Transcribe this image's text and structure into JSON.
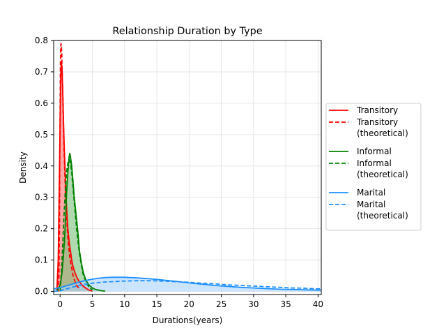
{
  "chart_data": {
    "type": "line",
    "title": "Relationship Duration by Type",
    "xlabel": "Durations(years)",
    "ylabel": "Density",
    "xlim": [
      -1,
      40.5
    ],
    "ylim": [
      -0.01,
      0.8
    ],
    "xticks": [
      0,
      5,
      10,
      15,
      20,
      25,
      30,
      35,
      40
    ],
    "yticks": [
      0.0,
      0.1,
      0.2,
      0.3,
      0.4,
      0.5,
      0.6,
      0.7,
      0.8
    ],
    "xtick_labels": [
      "0",
      "5",
      "10",
      "15",
      "20",
      "25",
      "30",
      "35",
      "40"
    ],
    "ytick_labels": [
      "0.0",
      "0.1",
      "0.2",
      "0.3",
      "0.4",
      "0.5",
      "0.6",
      "0.7",
      "0.8"
    ],
    "grid": true,
    "legend_position": "outside-right",
    "series": [
      {
        "name": "Transitory",
        "style": "solid",
        "color": "#ff0000",
        "fill": "#ff6f6f",
        "x": [
          -0.5,
          -0.3,
          -0.1,
          0.0,
          0.1,
          0.2,
          0.3,
          0.4,
          0.5,
          0.6,
          0.7,
          0.8,
          0.9,
          1.0,
          1.2,
          1.4,
          1.6,
          1.8,
          2.0,
          2.3,
          2.6,
          3.0,
          3.5,
          4.0,
          4.5,
          5.0
        ],
        "y": [
          0.0,
          0.1,
          0.38,
          0.55,
          0.68,
          0.73,
          0.71,
          0.64,
          0.56,
          0.49,
          0.43,
          0.37,
          0.32,
          0.27,
          0.2,
          0.16,
          0.13,
          0.1,
          0.08,
          0.06,
          0.045,
          0.03,
          0.018,
          0.01,
          0.004,
          0.001
        ]
      },
      {
        "name": "Transitory\n(theoretical)",
        "style": "dashed",
        "color": "#ff0000",
        "x": [
          -0.3,
          -0.2,
          -0.1,
          0.0,
          0.05,
          0.1,
          0.15,
          0.2,
          0.25,
          0.3,
          0.4,
          0.5,
          0.6,
          0.8,
          1.0,
          1.2,
          1.5,
          2.0,
          2.5,
          3.0
        ],
        "y": [
          0.0,
          0.03,
          0.2,
          0.6,
          0.73,
          0.78,
          0.79,
          0.78,
          0.76,
          0.72,
          0.64,
          0.55,
          0.46,
          0.33,
          0.24,
          0.17,
          0.11,
          0.05,
          0.02,
          0.008
        ]
      },
      {
        "name": "Informal",
        "style": "solid",
        "color": "#008000",
        "fill": "#79c279",
        "x": [
          -0.5,
          0.0,
          0.3,
          0.5,
          0.7,
          0.9,
          1.0,
          1.2,
          1.4,
          1.5,
          1.6,
          1.8,
          2.0,
          2.2,
          2.5,
          2.8,
          3.0,
          3.3,
          3.6,
          4.0,
          4.5,
          5.0,
          5.5,
          6.0,
          6.5,
          7.0
        ],
        "y": [
          0.0,
          0.02,
          0.06,
          0.11,
          0.17,
          0.26,
          0.31,
          0.38,
          0.43,
          0.44,
          0.43,
          0.4,
          0.35,
          0.3,
          0.24,
          0.18,
          0.13,
          0.09,
          0.06,
          0.035,
          0.02,
          0.011,
          0.006,
          0.004,
          0.002,
          0.001
        ]
      },
      {
        "name": "Informal\n(theoretical)",
        "style": "dashed",
        "color": "#008000",
        "x": [
          0.0,
          0.2,
          0.4,
          0.6,
          0.8,
          1.0,
          1.2,
          1.4,
          1.6,
          1.8,
          2.0,
          2.3,
          2.6,
          3.0,
          3.5,
          4.0,
          4.5,
          5.0
        ],
        "y": [
          0.0,
          0.06,
          0.15,
          0.24,
          0.32,
          0.38,
          0.41,
          0.42,
          0.41,
          0.38,
          0.33,
          0.26,
          0.19,
          0.12,
          0.06,
          0.03,
          0.013,
          0.005
        ]
      },
      {
        "name": "Marital",
        "style": "solid",
        "color": "#1e90ff",
        "fill": "#aad4ff",
        "x": [
          -1.0,
          0.0,
          1.0,
          2.0,
          3.0,
          4.0,
          5.0,
          6.0,
          7.0,
          8.0,
          9.0,
          10.0,
          12.0,
          14.0,
          16.0,
          18.0,
          20.0,
          22.0,
          24.0,
          26.0,
          28.0,
          30.0,
          32.0,
          34.0,
          36.0,
          38.0,
          40.0,
          40.5
        ],
        "y": [
          0.008,
          0.012,
          0.018,
          0.024,
          0.03,
          0.035,
          0.039,
          0.042,
          0.044,
          0.045,
          0.045,
          0.045,
          0.043,
          0.04,
          0.036,
          0.032,
          0.027,
          0.023,
          0.019,
          0.016,
          0.013,
          0.011,
          0.009,
          0.007,
          0.006,
          0.005,
          0.004,
          0.004
        ]
      },
      {
        "name": "Marital\n(theoretical)",
        "style": "dashed",
        "color": "#1e90ff",
        "x": [
          -1.0,
          0.0,
          1.0,
          2.0,
          3.0,
          4.0,
          5.0,
          6.0,
          7.0,
          8.0,
          10.0,
          12.0,
          14.0,
          16.0,
          18.0,
          20.0,
          22.0,
          24.0,
          26.0,
          28.0,
          30.0,
          32.0,
          34.0,
          36.0,
          38.0,
          40.0,
          40.5
        ],
        "y": [
          0.0,
          0.002,
          0.008,
          0.014,
          0.019,
          0.023,
          0.026,
          0.028,
          0.03,
          0.031,
          0.033,
          0.034,
          0.034,
          0.033,
          0.031,
          0.029,
          0.026,
          0.024,
          0.021,
          0.019,
          0.017,
          0.015,
          0.013,
          0.011,
          0.01,
          0.008,
          0.008
        ]
      }
    ]
  }
}
